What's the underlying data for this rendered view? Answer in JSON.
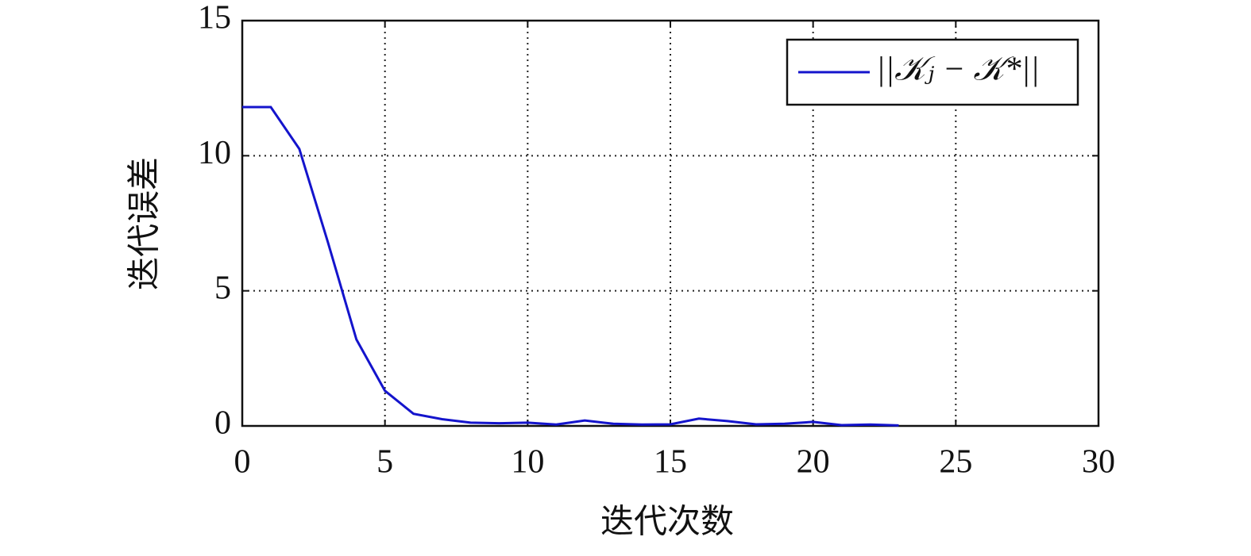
{
  "chart_data": {
    "type": "line",
    "xlabel": "迭代次数",
    "ylabel": "迭代误差",
    "x": [
      0,
      1,
      2,
      3,
      4,
      5,
      6,
      7,
      8,
      9,
      10,
      11,
      12,
      13,
      14,
      15,
      16,
      17,
      18,
      19,
      20,
      21,
      22,
      23
    ],
    "series": [
      {
        "name": "||𝒦ⱼ − 𝒦*||",
        "color": "#1414cc",
        "values": [
          11.8,
          11.8,
          10.25,
          6.8,
          3.2,
          1.3,
          0.45,
          0.25,
          0.12,
          0.1,
          0.12,
          0.05,
          0.2,
          0.08,
          0.05,
          0.06,
          0.27,
          0.18,
          0.06,
          0.08,
          0.15,
          0.03,
          0.05,
          0.02
        ]
      }
    ],
    "xlim": [
      0,
      30
    ],
    "xticks": [
      0,
      5,
      10,
      15,
      20,
      25,
      30
    ],
    "ylim": [
      0,
      15
    ],
    "yticks": [
      0,
      5,
      10,
      15
    ],
    "grid": true,
    "legend": "upper right"
  }
}
